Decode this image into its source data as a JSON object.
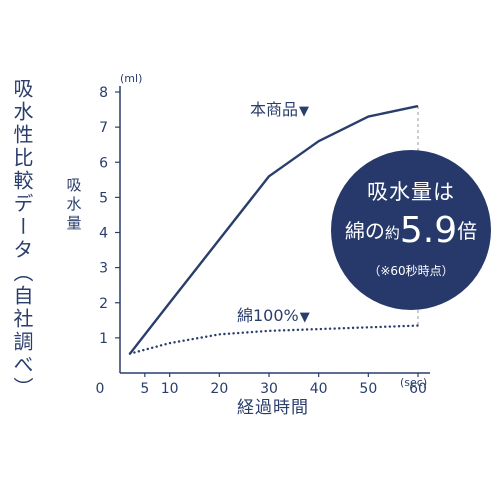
{
  "vertical_title": "吸水性比較データ（自社調べ）",
  "badge": {
    "line1": "吸水量は",
    "line2_prefix": "綿の",
    "line2_yaku": "約",
    "line2_value": "5.9",
    "line2_suffix": "倍",
    "line3": "（※60秒時点）"
  },
  "colors": {
    "line": "#2a3e6c",
    "badge": "#26396a",
    "dashed_guide": "#999999"
  },
  "chart_data": {
    "type": "line",
    "ylabel": "吸水量",
    "yunit": "(ml)",
    "xlabel": "経過時間",
    "xunit": "(sec)",
    "xlim": [
      0,
      60
    ],
    "ylim": [
      0,
      8
    ],
    "x_ticks": [
      0,
      5,
      10,
      20,
      30,
      40,
      50,
      60
    ],
    "y_ticks": [
      1,
      2,
      3,
      4,
      5,
      6,
      7,
      8
    ],
    "series": [
      {
        "name": "本商品",
        "style": "solid",
        "x": [
          2,
          10,
          20,
          30,
          40,
          50,
          60
        ],
        "y": [
          0.55,
          2.0,
          3.8,
          5.6,
          6.6,
          7.3,
          7.6
        ]
      },
      {
        "name": "綿100%",
        "style": "dotted",
        "x": [
          2,
          10,
          20,
          30,
          40,
          50,
          60
        ],
        "y": [
          0.55,
          0.85,
          1.1,
          1.2,
          1.25,
          1.3,
          1.35
        ]
      }
    ],
    "annotation": "吸水量は綿の約5.9倍（※60秒時点）"
  }
}
